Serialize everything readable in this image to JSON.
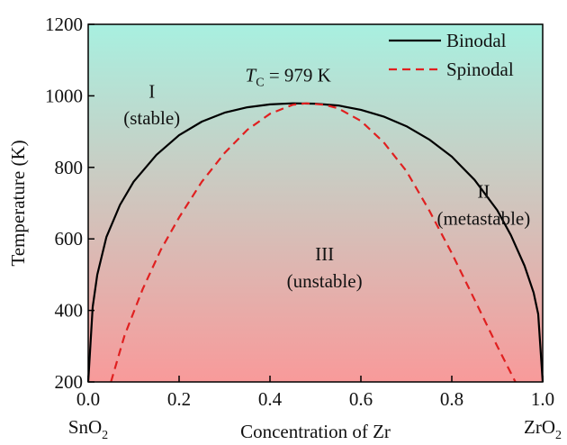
{
  "chart_data": {
    "type": "line",
    "title": "",
    "xlabel": "Concentration of Zr",
    "ylabel": "Temperature (K)",
    "xlim": [
      0.0,
      1.0
    ],
    "ylim": [
      200,
      1200
    ],
    "x_ticks": [
      0.0,
      0.2,
      0.4,
      0.6,
      0.8,
      1.0
    ],
    "x_tick_labels": [
      "0.0",
      "0.2",
      "0.4",
      "0.6",
      "0.8",
      "1.0"
    ],
    "y_ticks": [
      200,
      400,
      600,
      800,
      1000,
      1200
    ],
    "y_tick_labels": [
      "200",
      "400",
      "600",
      "800",
      "1000",
      "1200"
    ],
    "x_end_labels": {
      "left": {
        "base": "SnO",
        "sub": "2"
      },
      "right": {
        "base": "ZrO",
        "sub": "2"
      }
    },
    "background_gradient": {
      "top": "#a8f0e0",
      "bottom": "#f89a9a"
    },
    "legend": {
      "position": "top-right"
    },
    "series": [
      {
        "name": "Binodal",
        "style": "solid",
        "color": "#000000",
        "x": [
          0.0,
          0.01,
          0.02,
          0.04,
          0.07,
          0.1,
          0.15,
          0.2,
          0.25,
          0.3,
          0.35,
          0.4,
          0.45,
          0.5,
          0.55,
          0.6,
          0.65,
          0.7,
          0.75,
          0.8,
          0.85,
          0.9,
          0.93,
          0.96,
          0.98,
          0.99,
          1.0
        ],
        "y": [
          200,
          410,
          500,
          605,
          695,
          760,
          835,
          890,
          928,
          953,
          968,
          976,
          979,
          978,
          973,
          961,
          942,
          915,
          878,
          830,
          765,
          680,
          610,
          525,
          450,
          390,
          200
        ]
      },
      {
        "name": "Spinodal",
        "style": "dashed",
        "color": "#e02020",
        "x": [
          0.05,
          0.08,
          0.12,
          0.16,
          0.2,
          0.25,
          0.3,
          0.35,
          0.4,
          0.45,
          0.48,
          0.52,
          0.55,
          0.6,
          0.65,
          0.7,
          0.75,
          0.8,
          0.85,
          0.9,
          0.94
        ],
        "y": [
          200,
          330,
          460,
          570,
          660,
          760,
          840,
          905,
          950,
          975,
          979,
          975,
          965,
          930,
          870,
          790,
          680,
          560,
          430,
          300,
          200
        ]
      }
    ],
    "annotations": [
      {
        "type": "tc",
        "prefix": "T",
        "sub": "C",
        "rest": " = 979 K",
        "x": 0.44,
        "y": 1040
      },
      {
        "type": "region",
        "lines": [
          "I",
          "(stable)"
        ],
        "x": 0.14,
        "y": [
          995,
          920
        ]
      },
      {
        "type": "region",
        "lines": [
          "II",
          "(metastable)"
        ],
        "x": 0.87,
        "y": [
          715,
          640
        ]
      },
      {
        "type": "region",
        "lines": [
          "III",
          "(unstable)"
        ],
        "x": 0.52,
        "y": [
          540,
          465
        ]
      }
    ]
  }
}
